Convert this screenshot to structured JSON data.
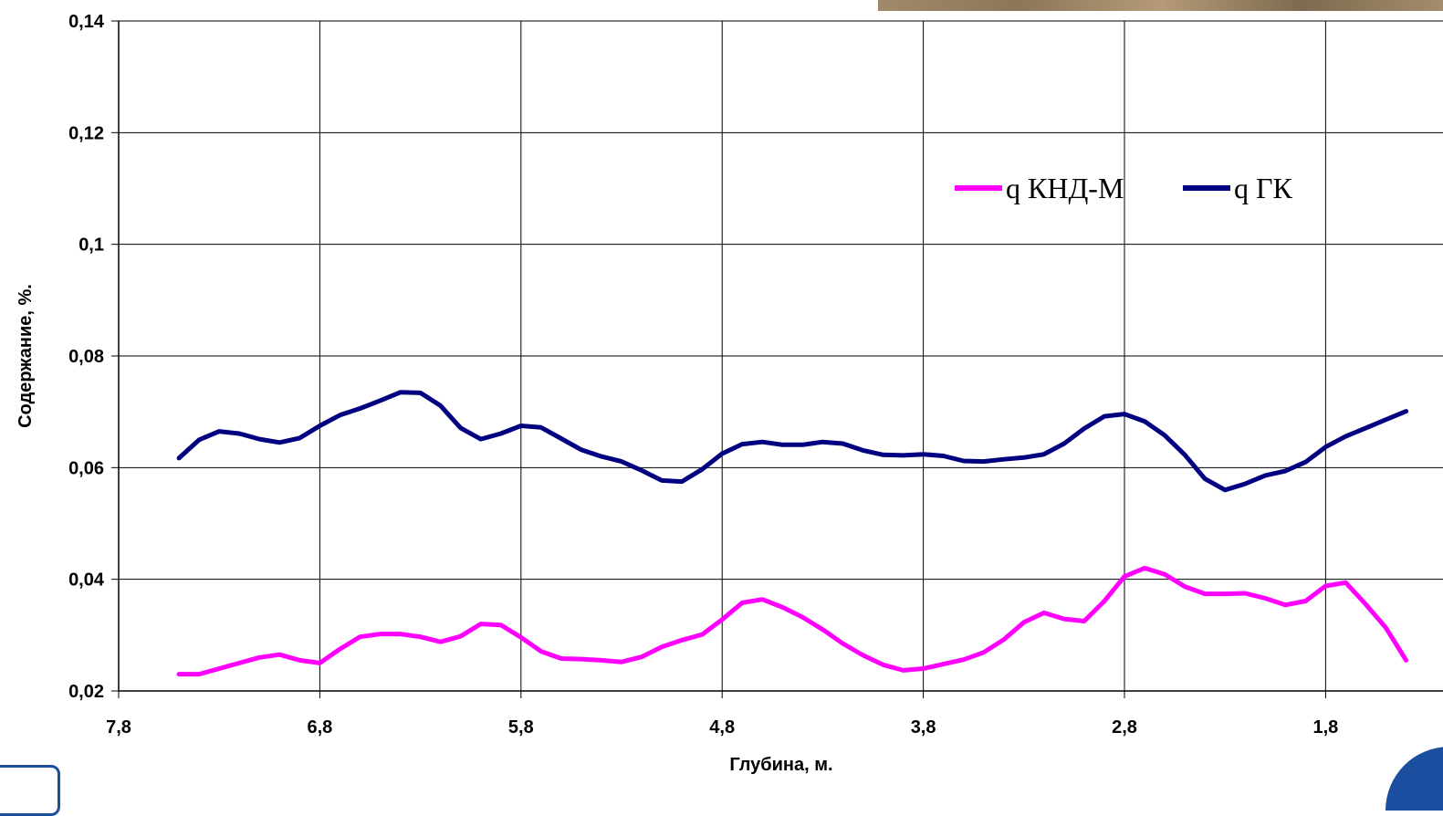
{
  "chart_data": {
    "type": "line",
    "xlabel": "Глубина, м.",
    "ylabel": "Содержание, %.",
    "xlim": [
      7.8,
      0.8
    ],
    "ylim": [
      0.02,
      0.14
    ],
    "x_ticks": [
      "7,8",
      "6,8",
      "5,8",
      "4,8",
      "3,8",
      "2,8",
      "1,8"
    ],
    "y_ticks": [
      "0,02",
      "0,04",
      "0,06",
      "0,08",
      "0,1",
      "0,12",
      "0,14"
    ],
    "grid": true,
    "legend_position": "upper-right",
    "x": [
      7.5,
      7.4,
      7.3,
      7.2,
      7.1,
      7.0,
      6.9,
      6.8,
      6.7,
      6.6,
      6.5,
      6.4,
      6.3,
      6.2,
      6.1,
      6.0,
      5.9,
      5.8,
      5.7,
      5.6,
      5.5,
      5.4,
      5.3,
      5.2,
      5.1,
      5.0,
      4.9,
      4.8,
      4.7,
      4.6,
      4.5,
      4.4,
      4.3,
      4.2,
      4.1,
      4.0,
      3.9,
      3.8,
      3.7,
      3.6,
      3.5,
      3.4,
      3.3,
      3.2,
      3.1,
      3.0,
      2.9,
      2.8,
      2.7,
      2.6,
      2.5,
      2.4,
      2.3,
      2.2,
      2.1,
      2.0,
      1.9,
      1.8,
      1.7,
      1.6,
      1.5,
      1.4
    ],
    "series": [
      {
        "name": "q КНД-М",
        "color": "#ff00ff",
        "values": [
          0.023,
          0.023,
          0.024,
          0.025,
          0.026,
          0.0265,
          0.0255,
          0.025,
          0.0275,
          0.0297,
          0.0302,
          0.0302,
          0.0297,
          0.0288,
          0.0298,
          0.032,
          0.0318,
          0.0296,
          0.0271,
          0.0258,
          0.0257,
          0.0255,
          0.0252,
          0.0261,
          0.0279,
          0.0291,
          0.0301,
          0.0328,
          0.0358,
          0.0364,
          0.035,
          0.0332,
          0.031,
          0.0285,
          0.0264,
          0.0247,
          0.0237,
          0.024,
          0.0248,
          0.0256,
          0.0269,
          0.0292,
          0.0323,
          0.034,
          0.0329,
          0.0325,
          0.0361,
          0.0405,
          0.042,
          0.0409,
          0.0387,
          0.0374,
          0.0374,
          0.0375,
          0.0366,
          0.0354,
          0.0361,
          0.0388,
          0.0394,
          0.0355,
          0.0313,
          0.0255
        ]
      },
      {
        "name": "q ГК",
        "color": "#000080",
        "values": [
          0.0617,
          0.065,
          0.0665,
          0.0661,
          0.0651,
          0.0645,
          0.0653,
          0.0675,
          0.0694,
          0.0706,
          0.072,
          0.0735,
          0.0734,
          0.0711,
          0.0671,
          0.0651,
          0.0661,
          0.0675,
          0.0672,
          0.0652,
          0.0632,
          0.062,
          0.0611,
          0.0595,
          0.0577,
          0.0575,
          0.0597,
          0.0625,
          0.0642,
          0.0646,
          0.0641,
          0.0641,
          0.0646,
          0.0643,
          0.0631,
          0.0623,
          0.0622,
          0.0624,
          0.0621,
          0.0612,
          0.0611,
          0.0615,
          0.0618,
          0.0624,
          0.0643,
          0.067,
          0.0692,
          0.0696,
          0.0683,
          0.0658,
          0.0623,
          0.058,
          0.056,
          0.0571,
          0.0586,
          0.0594,
          0.061,
          0.0637,
          0.0656,
          0.0671,
          0.0686,
          0.0701
        ]
      }
    ]
  }
}
